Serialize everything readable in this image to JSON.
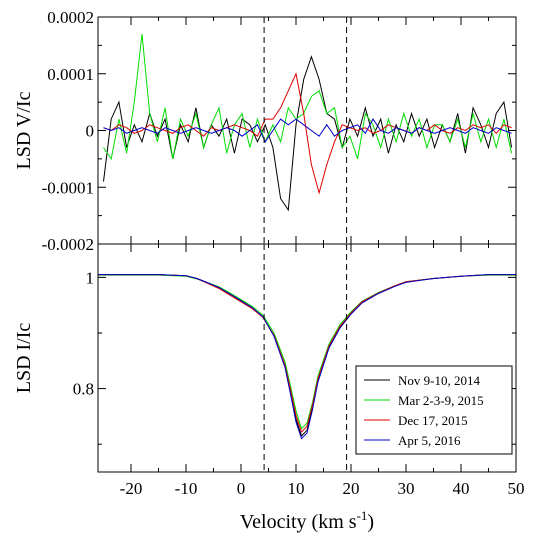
{
  "chart_data": [
    {
      "type": "line",
      "panel": "top",
      "ylabel": "LSD V/Ic",
      "xlim": [
        -26,
        50
      ],
      "ylim": [
        -0.0002,
        0.0002
      ],
      "yticks": [
        -0.0002,
        -0.0001,
        0,
        0.0001,
        0.0002
      ],
      "ytick_labels": [
        "-0.0002",
        "-0.0001",
        "0",
        "0.0001",
        "0.0002"
      ],
      "vlines": [
        4.2,
        19.2
      ],
      "series": [
        {
          "name": "Nov 9-10, 2014",
          "color": "#000000",
          "x": [
            -25,
            -23.6,
            -22.2,
            -20.8,
            -19.4,
            -18,
            -16.6,
            -15.2,
            -13.8,
            -12.4,
            -11,
            -9.6,
            -8.2,
            -6.8,
            -5.4,
            -4,
            -2.6,
            -1.2,
            0.2,
            1.6,
            3,
            4.4,
            5.8,
            7.2,
            8.6,
            10,
            11.4,
            12.8,
            14.2,
            15.6,
            17,
            18.4,
            19.8,
            21.2,
            22.6,
            24,
            25.4,
            26.8,
            28.2,
            29.6,
            31,
            32.4,
            33.8,
            35.2,
            36.6,
            38,
            39.4,
            40.8,
            42.2,
            43.6,
            45,
            46.4,
            47.8,
            49.2
          ],
          "values": [
            -9e-05,
            2e-05,
            5e-05,
            -3e-05,
            1e-05,
            -2e-05,
            3e-05,
            -1e-05,
            2e-05,
            -5e-05,
            1e-05,
            -2e-05,
            4e-05,
            -3e-05,
            1e-05,
            -1e-05,
            2e-05,
            -4e-05,
            2e-05,
            1e-05,
            -2e-05,
            1e-05,
            -3e-05,
            -0.00012,
            -0.00014,
            1e-05,
            9e-05,
            0.00013,
            9e-05,
            3e-05,
            2e-05,
            -3e-05,
            2e-05,
            -1e-05,
            4e-05,
            -1e-05,
            2e-05,
            -4e-05,
            1e-05,
            -2e-05,
            3e-05,
            -1e-05,
            2e-05,
            -3e-05,
            1e-05,
            -2e-05,
            3e-05,
            -4e-05,
            4e-05,
            1e-05,
            -3e-05,
            3e-05,
            5e-05,
            -3e-05
          ]
        },
        {
          "name": "Mar 2-3-9, 2015",
          "color": "#00dd00",
          "x": [
            -25,
            -23.6,
            -22.2,
            -20.8,
            -19.4,
            -18,
            -16.6,
            -15.2,
            -13.8,
            -12.4,
            -11,
            -9.6,
            -8.2,
            -6.8,
            -5.4,
            -4,
            -2.6,
            -1.2,
            0.2,
            1.6,
            3,
            4.4,
            5.8,
            7.2,
            8.6,
            10,
            11.4,
            12.8,
            14.2,
            15.6,
            17,
            18.4,
            19.8,
            21.2,
            22.6,
            24,
            25.4,
            26.8,
            28.2,
            29.6,
            31,
            32.4,
            33.8,
            35.2,
            36.6,
            38,
            39.4,
            40.8,
            42.2,
            43.6,
            45,
            46.4,
            47.8,
            49.2
          ],
          "values": [
            -3e-05,
            -5e-05,
            2e-05,
            -4e-05,
            5e-05,
            0.00017,
            3e-05,
            -2e-05,
            4e-05,
            -5e-05,
            2e-05,
            -1e-05,
            3e-05,
            -3e-05,
            1e-05,
            4e-05,
            -4e-05,
            1e-05,
            3e-05,
            -3e-05,
            2e-05,
            -2e-05,
            1e-05,
            -2e-05,
            4e-05,
            2e-05,
            3e-05,
            6e-05,
            7e-05,
            3e-05,
            4e-05,
            -3e-05,
            -1e-05,
            -5e-05,
            3e-05,
            1e-05,
            -3e-05,
            2e-05,
            -2e-05,
            3e-05,
            -1e-05,
            2e-05,
            -3e-05,
            1e-05,
            1e-05,
            -2e-05,
            2e-05,
            -3e-05,
            3e-05,
            -2e-05,
            2e-05,
            -3e-05,
            2e-05,
            -4e-05
          ]
        },
        {
          "name": "Dec 17, 2015",
          "color": "#dd0000",
          "x": [
            -25,
            -23.6,
            -22.2,
            -20.8,
            -19.4,
            -18,
            -16.6,
            -15.2,
            -13.8,
            -12.4,
            -11,
            -9.6,
            -8.2,
            -6.8,
            -5.4,
            -4,
            -2.6,
            -1.2,
            0.2,
            1.6,
            3,
            4.4,
            5.8,
            7.2,
            8.6,
            10,
            11.4,
            12.8,
            14.2,
            15.6,
            17,
            18.4,
            19.8,
            21.2,
            22.6,
            24,
            25.4,
            26.8,
            28.2,
            29.6,
            31,
            32.4,
            33.8,
            35.2,
            36.6,
            38,
            39.4,
            40.8,
            42.2,
            43.6,
            45,
            46.4,
            47.8,
            49.2
          ],
          "values": [
            5e-06,
            0,
            1e-05,
            5e-06,
            -5e-06,
            0,
            1e-05,
            5e-06,
            0,
            -5e-06,
            5e-06,
            1e-05,
            0,
            -1e-05,
            5e-06,
            0,
            5e-06,
            1e-05,
            5e-06,
            0,
            -1e-05,
            2e-05,
            2e-05,
            4e-05,
            7e-05,
            0.0001,
            3e-05,
            -6e-05,
            -0.00011,
            -6e-05,
            -2e-05,
            1e-05,
            5e-06,
            0,
            5e-06,
            -5e-06,
            0,
            1e-05,
            5e-06,
            0,
            -5e-06,
            5e-06,
            0,
            1e-05,
            0,
            -5e-06,
            5e-06,
            0,
            1e-05,
            5e-06,
            1e-05,
            -5e-06,
            1e-05,
            5e-06
          ]
        },
        {
          "name": "Apr 5, 2016",
          "color": "#0000cc",
          "x": [
            -25,
            -23.6,
            -22.2,
            -20.8,
            -19.4,
            -18,
            -16.6,
            -15.2,
            -13.8,
            -12.4,
            -11,
            -9.6,
            -8.2,
            -6.8,
            -5.4,
            -4,
            -2.6,
            -1.2,
            0.2,
            1.6,
            3,
            4.4,
            5.8,
            7.2,
            8.6,
            10,
            11.4,
            12.8,
            14.2,
            15.6,
            17,
            18.4,
            19.8,
            21.2,
            22.6,
            24,
            25.4,
            26.8,
            28.2,
            29.6,
            31,
            32.4,
            33.8,
            35.2,
            36.6,
            38,
            39.4,
            40.8,
            42.2,
            43.6,
            45,
            46.4,
            47.8,
            49.2
          ],
          "values": [
            5e-06,
            0,
            5e-06,
            -5e-06,
            0,
            5e-06,
            0,
            -5e-06,
            5e-06,
            0,
            -5e-06,
            0,
            5e-06,
            0,
            -5e-06,
            0,
            5e-06,
            0,
            -1e-05,
            0,
            1e-05,
            -2e-05,
            0,
            2e-05,
            1e-05,
            2e-05,
            1e-05,
            0,
            -1e-05,
            1e-05,
            -1e-05,
            0,
            5e-06,
            1e-05,
            -5e-06,
            2e-05,
            0,
            -5e-06,
            5e-06,
            0,
            -5e-06,
            5e-06,
            0,
            -5e-06,
            0,
            5e-06,
            0,
            -5e-06,
            5e-06,
            0,
            -5e-06,
            5e-06,
            0,
            -5e-06
          ]
        }
      ]
    },
    {
      "type": "line",
      "panel": "bottom",
      "xlabel": "Velocity (km s-1)",
      "xlabel_main": "Velocity (km s",
      "xlabel_sup": "-1",
      "xlabel_close": ")",
      "ylabel": "LSD I/Ic",
      "xlim": [
        -26,
        50
      ],
      "ylim": [
        0.65,
        1.06
      ],
      "xticks": [
        -20,
        -10,
        0,
        10,
        20,
        30,
        40,
        50
      ],
      "xtick_labels": [
        "-20",
        "-10",
        "0",
        "10",
        "20",
        "30",
        "40",
        "50"
      ],
      "yticks": [
        0.8,
        1
      ],
      "ytick_labels": [
        "0.8",
        "1"
      ],
      "vlines": [
        4.2,
        19.2
      ],
      "legend_position": "lower-right",
      "series": [
        {
          "name": "Nov 9-10, 2014",
          "color": "#000000",
          "x": [
            -26,
            -20,
            -15,
            -10,
            -8,
            -6,
            -4,
            -2,
            0,
            2,
            4,
            6,
            8,
            9,
            10,
            11,
            12,
            13,
            14,
            16,
            18,
            20,
            22,
            25,
            28,
            30,
            35,
            40,
            45,
            50
          ],
          "values": [
            1.005,
            1.005,
            1.005,
            1.003,
            0.998,
            0.99,
            0.982,
            0.97,
            0.958,
            0.945,
            0.928,
            0.895,
            0.84,
            0.795,
            0.745,
            0.715,
            0.725,
            0.765,
            0.815,
            0.875,
            0.91,
            0.935,
            0.955,
            0.972,
            0.985,
            0.992,
            0.998,
            1.002,
            1.005,
            1.005
          ]
        },
        {
          "name": "Mar 2-3-9, 2015",
          "color": "#00dd00",
          "x": [
            -26,
            -20,
            -15,
            -10,
            -8,
            -6,
            -4,
            -2,
            0,
            2,
            4,
            6,
            8,
            9,
            10,
            11,
            12,
            13,
            14,
            16,
            18,
            20,
            22,
            25,
            28,
            30,
            35,
            40,
            45,
            50
          ],
          "values": [
            1.004,
            1.004,
            1.004,
            1.002,
            0.997,
            0.99,
            0.983,
            0.972,
            0.96,
            0.948,
            0.932,
            0.9,
            0.848,
            0.805,
            0.76,
            0.728,
            0.738,
            0.775,
            0.823,
            0.88,
            0.915,
            0.938,
            0.957,
            0.973,
            0.985,
            0.992,
            0.998,
            1.002,
            1.004,
            1.004
          ]
        },
        {
          "name": "Dec 17, 2015",
          "color": "#dd0000",
          "x": [
            -26,
            -20,
            -15,
            -10,
            -8,
            -6,
            -4,
            -2,
            0,
            2,
            4,
            6,
            8,
            9,
            10,
            11,
            12,
            13,
            14,
            16,
            18,
            20,
            22,
            25,
            28,
            30,
            35,
            40,
            45,
            50
          ],
          "values": [
            1.005,
            1.005,
            1.005,
            1.003,
            0.998,
            0.989,
            0.98,
            0.968,
            0.956,
            0.944,
            0.928,
            0.896,
            0.842,
            0.798,
            0.752,
            0.722,
            0.732,
            0.77,
            0.818,
            0.877,
            0.912,
            0.936,
            0.956,
            0.972,
            0.985,
            0.992,
            0.998,
            1.002,
            1.005,
            1.005
          ]
        },
        {
          "name": "Apr 5, 2016",
          "color": "#0000cc",
          "x": [
            -26,
            -20,
            -15,
            -10,
            -8,
            -6,
            -4,
            -2,
            0,
            2,
            4,
            6,
            8,
            9,
            10,
            11,
            12,
            13,
            14,
            16,
            18,
            20,
            22,
            25,
            28,
            30,
            35,
            40,
            45,
            50
          ],
          "values": [
            1.005,
            1.005,
            1.005,
            1.003,
            0.998,
            0.99,
            0.982,
            0.97,
            0.958,
            0.946,
            0.929,
            0.894,
            0.838,
            0.79,
            0.74,
            0.71,
            0.72,
            0.762,
            0.812,
            0.873,
            0.909,
            0.934,
            0.954,
            0.971,
            0.984,
            0.991,
            0.998,
            1.002,
            1.005,
            1.005
          ]
        }
      ]
    }
  ]
}
